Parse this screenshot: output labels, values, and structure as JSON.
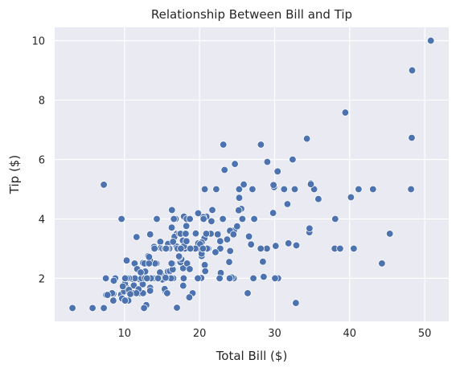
{
  "chart_data": {
    "type": "scatter",
    "title": "Relationship Between Bill and Tip",
    "xlabel": "Total Bill ($)",
    "ylabel": "Tip ($)",
    "xlim": [
      0.7,
      53.2
    ],
    "ylim": [
      0.55,
      10.45
    ],
    "xticks": [
      10,
      20,
      30,
      40,
      50
    ],
    "yticks": [
      2,
      4,
      6,
      8,
      10
    ],
    "xtick_labels": [
      "10",
      "20",
      "30",
      "40",
      "50"
    ],
    "ytick_labels": [
      "2",
      "4",
      "6",
      "8",
      "10"
    ],
    "grid": true,
    "background": "#eaeaf2",
    "point_color": "#4c72b0",
    "points": [
      [
        16.99,
        1.01
      ],
      [
        10.34,
        1.66
      ],
      [
        21.01,
        3.5
      ],
      [
        23.68,
        3.31
      ],
      [
        24.59,
        3.61
      ],
      [
        25.29,
        4.71
      ],
      [
        8.77,
        2.0
      ],
      [
        26.88,
        3.12
      ],
      [
        15.04,
        1.96
      ],
      [
        14.78,
        3.23
      ],
      [
        10.27,
        1.71
      ],
      [
        35.26,
        5.0
      ],
      [
        15.42,
        1.57
      ],
      [
        18.43,
        3.0
      ],
      [
        14.83,
        3.02
      ],
      [
        21.58,
        3.92
      ],
      [
        10.33,
        1.67
      ],
      [
        16.29,
        3.71
      ],
      [
        16.97,
        3.5
      ],
      [
        20.65,
        3.35
      ],
      [
        17.92,
        4.08
      ],
      [
        20.29,
        2.75
      ],
      [
        15.77,
        2.23
      ],
      [
        39.42,
        7.58
      ],
      [
        19.82,
        3.18
      ],
      [
        17.81,
        2.34
      ],
      [
        13.37,
        2.0
      ],
      [
        12.69,
        2.0
      ],
      [
        21.7,
        4.3
      ],
      [
        19.65,
        3.0
      ],
      [
        9.55,
        1.45
      ],
      [
        18.35,
        2.5
      ],
      [
        15.06,
        3.0
      ],
      [
        20.69,
        2.45
      ],
      [
        17.78,
        3.27
      ],
      [
        24.06,
        3.6
      ],
      [
        16.31,
        2.0
      ],
      [
        16.93,
        3.07
      ],
      [
        18.69,
        2.31
      ],
      [
        31.27,
        5.0
      ],
      [
        16.04,
        2.24
      ],
      [
        17.46,
        2.54
      ],
      [
        13.94,
        3.06
      ],
      [
        9.68,
        1.32
      ],
      [
        30.4,
        5.6
      ],
      [
        18.29,
        3.0
      ],
      [
        22.23,
        5.0
      ],
      [
        32.4,
        6.0
      ],
      [
        28.55,
        2.05
      ],
      [
        18.04,
        3.0
      ],
      [
        12.54,
        2.5
      ],
      [
        10.29,
        2.6
      ],
      [
        34.81,
        5.2
      ],
      [
        9.94,
        1.56
      ],
      [
        25.56,
        4.34
      ],
      [
        19.49,
        3.51
      ],
      [
        38.01,
        3.0
      ],
      [
        26.41,
        1.5
      ],
      [
        11.24,
        1.76
      ],
      [
        48.27,
        6.73
      ],
      [
        20.29,
        3.21
      ],
      [
        13.81,
        2.0
      ],
      [
        11.02,
        1.98
      ],
      [
        18.29,
        3.76
      ],
      [
        17.59,
        2.64
      ],
      [
        20.08,
        3.15
      ],
      [
        16.45,
        2.47
      ],
      [
        3.07,
        1.0
      ],
      [
        20.23,
        2.01
      ],
      [
        15.01,
        2.09
      ],
      [
        12.02,
        1.97
      ],
      [
        17.07,
        3.0
      ],
      [
        26.86,
        3.14
      ],
      [
        25.28,
        5.0
      ],
      [
        14.73,
        2.2
      ],
      [
        10.51,
        1.25
      ],
      [
        17.92,
        3.08
      ],
      [
        27.2,
        4.0
      ],
      [
        22.76,
        3.0
      ],
      [
        17.29,
        2.71
      ],
      [
        19.44,
        3.0
      ],
      [
        16.66,
        3.4
      ],
      [
        10.07,
        1.83
      ],
      [
        32.68,
        5.0
      ],
      [
        15.98,
        2.03
      ],
      [
        34.83,
        5.17
      ],
      [
        13.03,
        2.0
      ],
      [
        18.28,
        4.0
      ],
      [
        24.71,
        5.85
      ],
      [
        21.16,
        3.0
      ],
      [
        28.97,
        3.0
      ],
      [
        22.49,
        3.5
      ],
      [
        5.75,
        1.0
      ],
      [
        16.32,
        4.3
      ],
      [
        22.75,
        3.25
      ],
      [
        40.17,
        4.73
      ],
      [
        27.28,
        4.0
      ],
      [
        12.03,
        1.5
      ],
      [
        21.01,
        3.0
      ],
      [
        12.46,
        1.5
      ],
      [
        11.35,
        2.5
      ],
      [
        15.38,
        3.0
      ],
      [
        44.3,
        2.5
      ],
      [
        22.42,
        3.48
      ],
      [
        20.92,
        4.08
      ],
      [
        15.36,
        1.64
      ],
      [
        20.49,
        4.06
      ],
      [
        25.21,
        4.29
      ],
      [
        18.24,
        3.76
      ],
      [
        14.31,
        4.0
      ],
      [
        14.0,
        3.0
      ],
      [
        7.25,
        1.0
      ],
      [
        38.07,
        4.0
      ],
      [
        23.95,
        2.55
      ],
      [
        25.71,
        4.0
      ],
      [
        17.31,
        3.5
      ],
      [
        29.93,
        5.07
      ],
      [
        10.65,
        1.5
      ],
      [
        12.43,
        1.8
      ],
      [
        24.08,
        2.92
      ],
      [
        11.69,
        2.31
      ],
      [
        13.42,
        1.68
      ],
      [
        14.26,
        2.5
      ],
      [
        15.95,
        2.0
      ],
      [
        12.48,
        2.52
      ],
      [
        29.8,
        4.2
      ],
      [
        8.52,
        1.48
      ],
      [
        14.52,
        2.0
      ],
      [
        11.38,
        2.0
      ],
      [
        22.82,
        2.18
      ],
      [
        19.08,
        1.5
      ],
      [
        20.27,
        2.83
      ],
      [
        11.17,
        1.5
      ],
      [
        12.26,
        2.0
      ],
      [
        18.26,
        3.25
      ],
      [
        8.51,
        1.25
      ],
      [
        10.33,
        2.0
      ],
      [
        14.15,
        2.0
      ],
      [
        16.0,
        2.0
      ],
      [
        13.16,
        2.75
      ],
      [
        17.47,
        3.5
      ],
      [
        34.3,
        6.7
      ],
      [
        41.19,
        5.0
      ],
      [
        27.05,
        5.0
      ],
      [
        16.43,
        2.3
      ],
      [
        8.35,
        1.5
      ],
      [
        18.64,
        1.36
      ],
      [
        11.87,
        1.63
      ],
      [
        9.78,
        1.73
      ],
      [
        7.51,
        2.0
      ],
      [
        14.07,
        2.5
      ],
      [
        13.13,
        2.0
      ],
      [
        17.26,
        2.74
      ],
      [
        24.55,
        2.0
      ],
      [
        19.77,
        2.0
      ],
      [
        29.85,
        5.14
      ],
      [
        48.17,
        5.0
      ],
      [
        25.0,
        3.75
      ],
      [
        13.39,
        2.61
      ],
      [
        16.49,
        2.0
      ],
      [
        21.5,
        3.5
      ],
      [
        12.66,
        2.5
      ],
      [
        16.21,
        2.0
      ],
      [
        13.81,
        2.0
      ],
      [
        17.51,
        3.0
      ],
      [
        24.52,
        3.48
      ],
      [
        20.76,
        2.24
      ],
      [
        31.71,
        4.5
      ],
      [
        10.59,
        1.61
      ],
      [
        10.63,
        2.0
      ],
      [
        50.81,
        10.0
      ],
      [
        15.81,
        3.16
      ],
      [
        7.25,
        5.15
      ],
      [
        31.85,
        3.18
      ],
      [
        16.82,
        4.0
      ],
      [
        32.9,
        3.11
      ],
      [
        17.89,
        2.0
      ],
      [
        14.48,
        2.0
      ],
      [
        9.6,
        4.0
      ],
      [
        34.63,
        3.55
      ],
      [
        34.65,
        3.68
      ],
      [
        23.33,
        5.65
      ],
      [
        45.35,
        3.5
      ],
      [
        23.17,
        6.5
      ],
      [
        40.55,
        3.0
      ],
      [
        20.69,
        5.0
      ],
      [
        20.9,
        3.5
      ],
      [
        30.46,
        2.0
      ],
      [
        18.15,
        3.5
      ],
      [
        23.1,
        4.0
      ],
      [
        15.69,
        1.5
      ],
      [
        19.81,
        4.19
      ],
      [
        28.44,
        2.56
      ],
      [
        15.48,
        2.02
      ],
      [
        16.58,
        4.0
      ],
      [
        7.56,
        1.44
      ],
      [
        10.34,
        2.0
      ],
      [
        43.11,
        5.0
      ],
      [
        13.0,
        2.0
      ],
      [
        13.51,
        2.0
      ],
      [
        18.71,
        4.0
      ],
      [
        12.74,
        2.01
      ],
      [
        13.0,
        2.0
      ],
      [
        16.4,
        2.5
      ],
      [
        20.53,
        4.0
      ],
      [
        16.47,
        3.23
      ],
      [
        26.59,
        3.41
      ],
      [
        38.73,
        3.0
      ],
      [
        24.27,
        2.03
      ],
      [
        12.76,
        2.23
      ],
      [
        30.06,
        2.0
      ],
      [
        25.89,
        5.16
      ],
      [
        48.33,
        9.0
      ],
      [
        13.27,
        2.5
      ],
      [
        28.17,
        6.5
      ],
      [
        12.9,
        1.1
      ],
      [
        28.15,
        3.0
      ],
      [
        11.59,
        1.5
      ],
      [
        7.74,
        1.44
      ],
      [
        30.14,
        3.09
      ],
      [
        12.16,
        2.2
      ],
      [
        13.42,
        3.48
      ],
      [
        8.58,
        1.92
      ],
      [
        15.98,
        3.0
      ],
      [
        13.42,
        1.58
      ],
      [
        16.27,
        2.5
      ],
      [
        10.09,
        2.0
      ],
      [
        20.45,
        3.0
      ],
      [
        13.28,
        2.72
      ],
      [
        22.12,
        2.88
      ],
      [
        24.01,
        2.0
      ],
      [
        15.69,
        3.0
      ],
      [
        11.61,
        3.39
      ],
      [
        10.77,
        1.47
      ],
      [
        15.53,
        3.0
      ],
      [
        10.07,
        1.25
      ],
      [
        12.6,
        1.0
      ],
      [
        32.83,
        1.17
      ],
      [
        35.83,
        4.67
      ],
      [
        29.03,
        5.92
      ],
      [
        27.18,
        2.0
      ],
      [
        22.67,
        2.0
      ],
      [
        17.82,
        1.75
      ],
      [
        18.78,
        3.0
      ]
    ]
  }
}
